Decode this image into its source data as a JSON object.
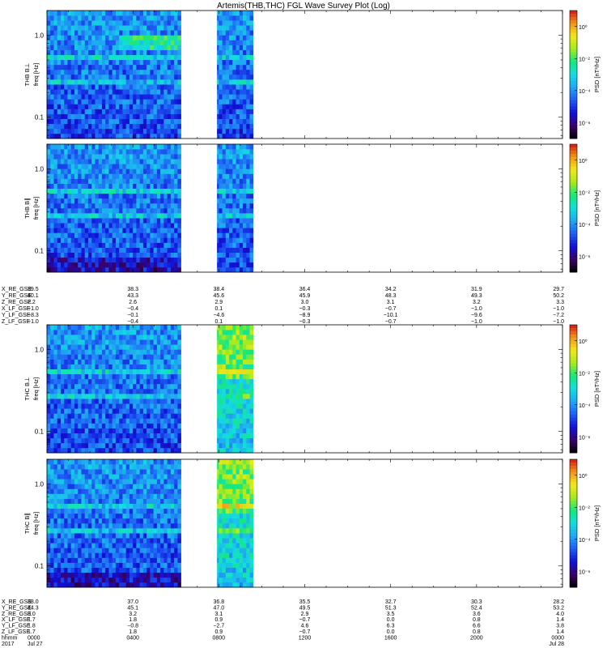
{
  "title": "Artemis(THB,THC) FGL Wave Survey Plot (Log)",
  "colors": {
    "colormap": [
      "#000000",
      "#3b006a",
      "#1010d8",
      "#1e5ef5",
      "#1ea8f2",
      "#12dde0",
      "#16e878",
      "#a6ea1c",
      "#f2e81a",
      "#f19418",
      "#d21a10"
    ],
    "gap": "#ffffff"
  },
  "panels": [
    {
      "name": "THB B⊥",
      "ylabel_left": "THB B⊥",
      "ylabel_freq": "freq [Hz]"
    },
    {
      "name": "THB B∥",
      "ylabel_left": "THB B∥",
      "ylabel_freq": "freq [Hz]"
    },
    {
      "name": "THC B⊥",
      "ylabel_left": "THC B⊥",
      "ylabel_freq": "freq [Hz]"
    },
    {
      "name": "THC B∥",
      "ylabel_left": "THC B∥",
      "ylabel_freq": "freq [Hz]"
    }
  ],
  "y_ticks": [
    "1.0",
    "0.1"
  ],
  "colorbar_label": "PSD [nT²/Hz]",
  "colorbar_ticks": [
    "10⁰",
    "10⁻²",
    "10⁻⁴",
    "10⁻⁶"
  ],
  "chart_data": {
    "type": "heatmap",
    "title": "Artemis(THB,THC) FGL Wave Survey Plot (Log)",
    "xlabel": "hhmm",
    "ylabel": "freq [Hz]",
    "y_scale": "log",
    "ylim": [
      0.055,
      2.0
    ],
    "z_label": "PSD [nT²/Hz]",
    "z_scale": "log",
    "zlim": [
      1e-07,
      10
    ],
    "x_range": [
      "2017-07-27 00:00",
      "2017-07-28 00:00"
    ],
    "x_ticks": [
      "0000",
      "0400",
      "0800",
      "1200",
      "1600",
      "2000",
      "0000"
    ],
    "x_tick_dates": [
      "Jul 27",
      "",
      "",
      "",
      "",
      "",
      "Jul 28"
    ],
    "x_year": "2017",
    "data_intervals": [
      [
        "00:00",
        "06:15"
      ],
      [
        "07:55",
        "09:40"
      ]
    ],
    "series": [
      {
        "name": "THB B⊥"
      },
      {
        "name": "THB B∥"
      },
      {
        "name": "THC B⊥"
      },
      {
        "name": "THC B∥"
      }
    ]
  },
  "ephemeris_thb": {
    "labels": [
      "X_RE_GSE",
      "Y_RE_GSE",
      "Z_RE_GSE",
      "X_LF_GSE",
      "Y_LF_GSE",
      "Z_LF_GSE"
    ],
    "columns": [
      [
        "39.5",
        "40.1",
        "2.2",
        "−1.0",
        "−8.3",
        "−1.0"
      ],
      [
        "38.3",
        "43.3",
        "2.6",
        "−0.4",
        "−0.1",
        "−0.4"
      ],
      [
        "38.4",
        "45.6",
        "2.9",
        "0.1",
        "−4.6",
        "0.1"
      ],
      [
        "36.4",
        "45.9",
        "3.0",
        "−0.3",
        "−8.9",
        "−0.3"
      ],
      [
        "34.2",
        "48.3",
        "3.1",
        "−0.7",
        "−10.1",
        "−0.7"
      ],
      [
        "31.9",
        "49.3",
        "3.2",
        "−1.0",
        "−9.6",
        "−1.0"
      ],
      [
        "29.7",
        "50.2",
        "3.3",
        "−1.0",
        "−7.2",
        "−1.0"
      ]
    ]
  },
  "ephemeris_thc": {
    "labels": [
      "X_RE_GSE",
      "Y_RE_GSE",
      "Z_RE_GSE",
      "X_LF_GSE",
      "Y_LF_GSE",
      "Z_LF_GSE",
      "hhmm",
      "2017"
    ],
    "columns": [
      [
        "38.0",
        "44.3",
        "3.0",
        "1.7",
        "1.8",
        "1.7",
        "0000",
        "Jul 27"
      ],
      [
        "37.0",
        "45.1",
        "3.2",
        "1.8",
        "−0.8",
        "1.8",
        "0400",
        ""
      ],
      [
        "36.8",
        "47.0",
        "3.1",
        "0.9",
        "−2.7",
        "0.9",
        "0800",
        ""
      ],
      [
        "35.5",
        "49.5",
        "2.9",
        "−0.7",
        "4.6",
        "−0.7",
        "1200",
        ""
      ],
      [
        "32.7",
        "51.3",
        "3.5",
        "0.0",
        "6.3",
        "0.0",
        "1600",
        ""
      ],
      [
        "30.3",
        "52.4",
        "3.6",
        "0.8",
        "6.6",
        "0.8",
        "2000",
        ""
      ],
      [
        "28.2",
        "53.2",
        "4.0",
        "1.4",
        "3.8",
        "1.4",
        "0000",
        "Jul 28"
      ]
    ]
  }
}
